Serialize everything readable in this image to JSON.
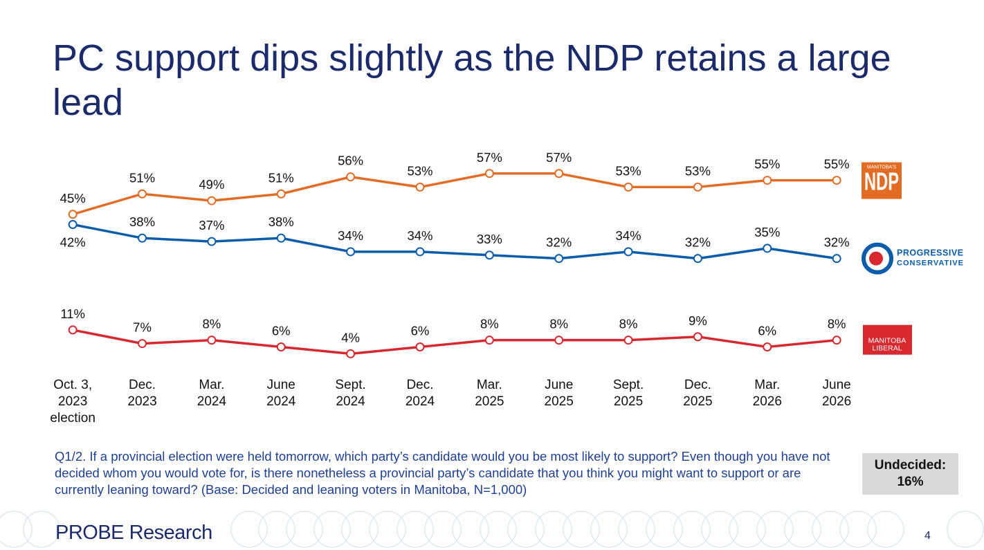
{
  "chart_data": {
    "type": "line",
    "title": "PC support dips slightly as the NDP retains a large lead",
    "categories": [
      "Oct. 3,\n2023\nelection",
      "Dec.\n2023",
      "Mar.\n2024",
      "June\n2024",
      "Sept.\n2024",
      "Dec.\n2024",
      "Mar.\n2025",
      "June\n2025",
      "Sept.\n2025",
      "Dec.\n2025",
      "Mar.\n2026",
      "June\n2026"
    ],
    "ylim": [
      0,
      60
    ],
    "series": [
      {
        "name": "MANITOBA'S\nNDP",
        "color": "#e36c25",
        "values": [
          45,
          51,
          49,
          51,
          56,
          53,
          57,
          57,
          53,
          53,
          55,
          55
        ],
        "value_labels": [
          "45%",
          "51%",
          "49%",
          "51%",
          "56%",
          "53%",
          "57%",
          "57%",
          "53%",
          "53%",
          "55%",
          "55%"
        ]
      },
      {
        "name": "PROGRESSIVE\nCONSERVATIVE",
        "color": "#0b5cab",
        "values": [
          42,
          38,
          37,
          38,
          34,
          34,
          33,
          32,
          34,
          32,
          35,
          32
        ],
        "value_labels": [
          "42%",
          "38%",
          "37%",
          "38%",
          "34%",
          "34%",
          "33%",
          "32%",
          "34%",
          "32%",
          "35%",
          "32%"
        ]
      },
      {
        "name": "MANITOBA\nLIBERAL",
        "color": "#d7282f",
        "values": [
          11,
          7,
          8,
          6,
          4,
          6,
          8,
          8,
          8,
          9,
          6,
          8
        ],
        "value_labels": [
          "11%",
          "7%",
          "8%",
          "6%",
          "4%",
          "6%",
          "8%",
          "8%",
          "8%",
          "9%",
          "6%",
          "8%"
        ]
      }
    ],
    "annotation": {
      "text": "Undecided:",
      "value": 16,
      "value_label": "16%"
    }
  },
  "footer": {
    "note": "Q1/2. If a provincial election were held tomorrow, which party’s candidate would you be most likely to support? Even though you have not decided whom you would vote for, is there nonetheless a provincial party’s candidate that you think you might want to support or are currently leaning toward? (Base: Decided and leaning voters in Manitoba, N=1,000)",
    "brand": "PROBE Research",
    "page": "4"
  }
}
